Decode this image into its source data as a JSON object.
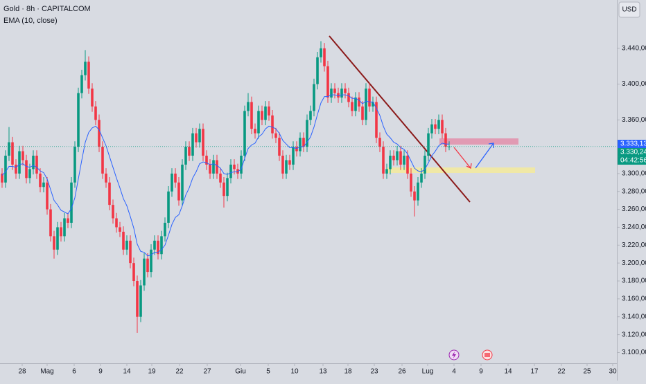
{
  "chart_data": {
    "type": "candlestick",
    "title": "Gold · 8h · CAPITALCOM",
    "currency": "USD",
    "up_color": "#089981",
    "down_color": "#f23645",
    "ylim": [
      3088,
      3494
    ],
    "yticks": [
      {
        "value": 3440,
        "label": "3.440,00"
      },
      {
        "value": 3400,
        "label": "3.400,00"
      },
      {
        "value": 3360,
        "label": "3.360,00"
      },
      {
        "value": 3300,
        "label": "3.300,00"
      },
      {
        "value": 3280,
        "label": "3.280,00"
      },
      {
        "value": 3260,
        "label": "3.260,00"
      },
      {
        "value": 3240,
        "label": "3.240,00"
      },
      {
        "value": 3220,
        "label": "3.220,00"
      },
      {
        "value": 3200,
        "label": "3.200,00"
      },
      {
        "value": 3180,
        "label": "3.180,00"
      },
      {
        "value": 3160,
        "label": "3.160,00"
      },
      {
        "value": 3140,
        "label": "3.140,00"
      },
      {
        "value": 3120,
        "label": "3.120,00"
      },
      {
        "value": 3100,
        "label": "3.100,00"
      }
    ],
    "xticks": [
      {
        "value": 5.8,
        "label": "28"
      },
      {
        "value": 13,
        "label": "Mag"
      },
      {
        "value": 20.8,
        "label": "6"
      },
      {
        "value": 28.4,
        "label": "9"
      },
      {
        "value": 36,
        "label": "14"
      },
      {
        "value": 43.2,
        "label": "19"
      },
      {
        "value": 51.2,
        "label": "22"
      },
      {
        "value": 59.2,
        "label": "27"
      },
      {
        "value": 68.8,
        "label": "Giu"
      },
      {
        "value": 76.8,
        "label": "5"
      },
      {
        "value": 84.4,
        "label": "10"
      },
      {
        "value": 92.6,
        "label": "13"
      },
      {
        "value": 99.8,
        "label": "18"
      },
      {
        "value": 107.4,
        "label": "23"
      },
      {
        "value": 115.4,
        "label": "26"
      },
      {
        "value": 122.8,
        "label": "Lug"
      },
      {
        "value": 130.4,
        "label": "4"
      },
      {
        "value": 138.2,
        "label": "9"
      },
      {
        "value": 146,
        "label": "14"
      },
      {
        "value": 153.6,
        "label": "17"
      },
      {
        "value": 161.4,
        "label": "22"
      },
      {
        "value": 168.8,
        "label": "25"
      },
      {
        "value": 176.2,
        "label": "30"
      }
    ],
    "candles": [
      [
        3300,
        3306,
        3284,
        3290
      ],
      [
        3290,
        3326,
        3284,
        3320
      ],
      [
        3320,
        3352,
        3314,
        3335
      ],
      [
        3335,
        3341,
        3304,
        3310
      ],
      [
        3310,
        3316,
        3294,
        3300
      ],
      [
        3300,
        3331,
        3294,
        3325
      ],
      [
        3325,
        3331,
        3309,
        3315
      ],
      [
        3315,
        3321,
        3289,
        3295
      ],
      [
        3295,
        3311,
        3289,
        3305
      ],
      [
        3305,
        3326,
        3299,
        3320
      ],
      [
        3320,
        3326,
        3294,
        3300
      ],
      [
        3300,
        3306,
        3279,
        3285
      ],
      [
        3285,
        3296,
        3279,
        3290
      ],
      [
        3290,
        3296,
        3254,
        3260
      ],
      [
        3260,
        3266,
        3224,
        3230
      ],
      [
        3230,
        3236,
        3205,
        3215
      ],
      [
        3215,
        3246,
        3209,
        3240
      ],
      [
        3240,
        3246,
        3224,
        3230
      ],
      [
        3230,
        3256,
        3224,
        3250
      ],
      [
        3250,
        3256,
        3239,
        3245
      ],
      [
        3245,
        3296,
        3239,
        3290
      ],
      [
        3290,
        3336,
        3284,
        3330
      ],
      [
        3330,
        3396,
        3324,
        3390
      ],
      [
        3390,
        3416,
        3384,
        3410
      ],
      [
        3410,
        3438,
        3404,
        3425
      ],
      [
        3425,
        3431,
        3389,
        3395
      ],
      [
        3395,
        3401,
        3369,
        3375
      ],
      [
        3375,
        3381,
        3354,
        3360
      ],
      [
        3360,
        3366,
        3324,
        3330
      ],
      [
        3330,
        3336,
        3294,
        3300
      ],
      [
        3300,
        3306,
        3284,
        3290
      ],
      [
        3290,
        3296,
        3259,
        3265
      ],
      [
        3265,
        3271,
        3244,
        3250
      ],
      [
        3250,
        3256,
        3234,
        3240
      ],
      [
        3240,
        3246,
        3229,
        3235
      ],
      [
        3235,
        3241,
        3209,
        3215
      ],
      [
        3215,
        3231,
        3209,
        3225
      ],
      [
        3225,
        3231,
        3194,
        3200
      ],
      [
        3200,
        3206,
        3174,
        3180
      ],
      [
        3180,
        3186,
        3122,
        3140
      ],
      [
        3140,
        3181,
        3134,
        3175
      ],
      [
        3175,
        3211,
        3169,
        3205
      ],
      [
        3205,
        3211,
        3184,
        3190
      ],
      [
        3190,
        3221,
        3184,
        3215
      ],
      [
        3215,
        3231,
        3209,
        3225
      ],
      [
        3225,
        3231,
        3204,
        3210
      ],
      [
        3210,
        3236,
        3204,
        3230
      ],
      [
        3230,
        3251,
        3224,
        3245
      ],
      [
        3245,
        3286,
        3239,
        3280
      ],
      [
        3280,
        3306,
        3274,
        3300
      ],
      [
        3300,
        3306,
        3284,
        3290
      ],
      [
        3290,
        3296,
        3264,
        3270
      ],
      [
        3270,
        3316,
        3264,
        3310
      ],
      [
        3310,
        3336,
        3304,
        3330
      ],
      [
        3330,
        3336,
        3314,
        3320
      ],
      [
        3320,
        3351,
        3314,
        3345
      ],
      [
        3345,
        3351,
        3329,
        3335
      ],
      [
        3335,
        3356,
        3329,
        3350
      ],
      [
        3350,
        3356,
        3314,
        3320
      ],
      [
        3320,
        3326,
        3304,
        3310
      ],
      [
        3310,
        3316,
        3294,
        3300
      ],
      [
        3300,
        3321,
        3294,
        3315
      ],
      [
        3315,
        3321,
        3294,
        3300
      ],
      [
        3300,
        3306,
        3284,
        3290
      ],
      [
        3290,
        3296,
        3262,
        3275
      ],
      [
        3275,
        3301,
        3269,
        3295
      ],
      [
        3295,
        3316,
        3289,
        3310
      ],
      [
        3310,
        3316,
        3299,
        3305
      ],
      [
        3305,
        3311,
        3294,
        3300
      ],
      [
        3300,
        3326,
        3294,
        3320
      ],
      [
        3320,
        3376,
        3314,
        3370
      ],
      [
        3370,
        3390,
        3364,
        3380
      ],
      [
        3380,
        3386,
        3344,
        3350
      ],
      [
        3350,
        3356,
        3339,
        3345
      ],
      [
        3345,
        3376,
        3339,
        3370
      ],
      [
        3370,
        3376,
        3354,
        3360
      ],
      [
        3360,
        3381,
        3354,
        3375
      ],
      [
        3375,
        3381,
        3359,
        3365
      ],
      [
        3365,
        3371,
        3339,
        3345
      ],
      [
        3345,
        3351,
        3334,
        3340
      ],
      [
        3340,
        3346,
        3314,
        3320
      ],
      [
        3320,
        3326,
        3294,
        3300
      ],
      [
        3300,
        3321,
        3294,
        3315
      ],
      [
        3315,
        3321,
        3304,
        3310
      ],
      [
        3310,
        3336,
        3304,
        3330
      ],
      [
        3330,
        3336,
        3319,
        3325
      ],
      [
        3325,
        3346,
        3319,
        3340
      ],
      [
        3340,
        3346,
        3324,
        3330
      ],
      [
        3330,
        3366,
        3324,
        3360
      ],
      [
        3360,
        3376,
        3354,
        3370
      ],
      [
        3370,
        3406,
        3364,
        3400
      ],
      [
        3400,
        3436,
        3394,
        3430
      ],
      [
        3430,
        3448,
        3424,
        3440
      ],
      [
        3440,
        3446,
        3414,
        3420
      ],
      [
        3420,
        3426,
        3379,
        3385
      ],
      [
        3385,
        3401,
        3379,
        3395
      ],
      [
        3395,
        3401,
        3384,
        3390
      ],
      [
        3390,
        3396,
        3379,
        3385
      ],
      [
        3385,
        3401,
        3379,
        3395
      ],
      [
        3395,
        3401,
        3384,
        3390
      ],
      [
        3390,
        3396,
        3374,
        3380
      ],
      [
        3380,
        3386,
        3364,
        3370
      ],
      [
        3370,
        3391,
        3364,
        3385
      ],
      [
        3385,
        3391,
        3369,
        3375
      ],
      [
        3375,
        3381,
        3354,
        3360
      ],
      [
        3360,
        3401,
        3354,
        3395
      ],
      [
        3395,
        3401,
        3369,
        3375
      ],
      [
        3375,
        3386,
        3369,
        3380
      ],
      [
        3380,
        3386,
        3334,
        3340
      ],
      [
        3340,
        3346,
        3324,
        3330
      ],
      [
        3330,
        3336,
        3294,
        3300
      ],
      [
        3300,
        3311,
        3294,
        3305
      ],
      [
        3305,
        3326,
        3299,
        3320
      ],
      [
        3320,
        3326,
        3309,
        3315
      ],
      [
        3315,
        3331,
        3309,
        3325
      ],
      [
        3325,
        3331,
        3304,
        3310
      ],
      [
        3310,
        3326,
        3304,
        3320
      ],
      [
        3320,
        3326,
        3294,
        3300
      ],
      [
        3300,
        3306,
        3274,
        3280
      ],
      [
        3280,
        3286,
        3252,
        3270
      ],
      [
        3270,
        3296,
        3264,
        3290
      ],
      [
        3290,
        3306,
        3284,
        3300
      ],
      [
        3300,
        3326,
        3294,
        3320
      ],
      [
        3320,
        3351,
        3314,
        3345
      ],
      [
        3345,
        3361,
        3339,
        3355
      ],
      [
        3355,
        3361,
        3344,
        3350
      ],
      [
        3350,
        3366,
        3344,
        3360
      ],
      [
        3360,
        3366,
        3339,
        3345
      ],
      [
        3345,
        3351,
        3324,
        3330
      ],
      [
        3330,
        3336,
        3326,
        3330.24
      ]
    ],
    "ema": {
      "name": "EMA (10, close)",
      "color": "#2962ff",
      "values": [
        3298,
        3302,
        3308,
        3308,
        3307,
        3310,
        3311,
        3308,
        3307,
        3309,
        3307,
        3303,
        3301,
        3294,
        3282,
        3270,
        3265,
        3259,
        3257,
        3255,
        3261,
        3273,
        3294,
        3315,
        3335,
        3346,
        3351,
        3353,
        3349,
        3340,
        3331,
        3319,
        3307,
        3295,
        3284,
        3272,
        3264,
        3252,
        3239,
        3221,
        3213,
        3212,
        3208,
        3209,
        3212,
        3212,
        3215,
        3220,
        3231,
        3243,
        3251,
        3254,
        3264,
        3276,
        3284,
        3295,
        3302,
        3311,
        3313,
        3312,
        3310,
        3311,
        3309,
        3306,
        3300,
        3299,
        3301,
        3302,
        3302,
        3305,
        3317,
        3328,
        3332,
        3334,
        3341,
        3344,
        3350,
        3353,
        3352,
        3350,
        3345,
        3337,
        3333,
        3329,
        3329,
        3328,
        3330,
        3330,
        3335,
        3341,
        3352,
        3366,
        3379,
        3386,
        3386,
        3388,
        3388,
        3387,
        3388,
        3388,
        3387,
        3384,
        3384,
        3382,
        3378,
        3381,
        3380,
        3380,
        3373,
        3365,
        3353,
        3344,
        3340,
        3335,
        3333,
        3329,
        3327,
        3322,
        3314,
        3306,
        3303,
        3302,
        3305,
        3312,
        3320,
        3325,
        3331,
        3334,
        3333,
        3333
      ]
    },
    "price_labels": [
      {
        "value": 3333.13,
        "label": "3.333,13",
        "color": "#2962ff"
      },
      {
        "value": 3330.24,
        "label": "3.330,24",
        "color": "#089981"
      }
    ],
    "countdown": "04:42:56"
  }
}
